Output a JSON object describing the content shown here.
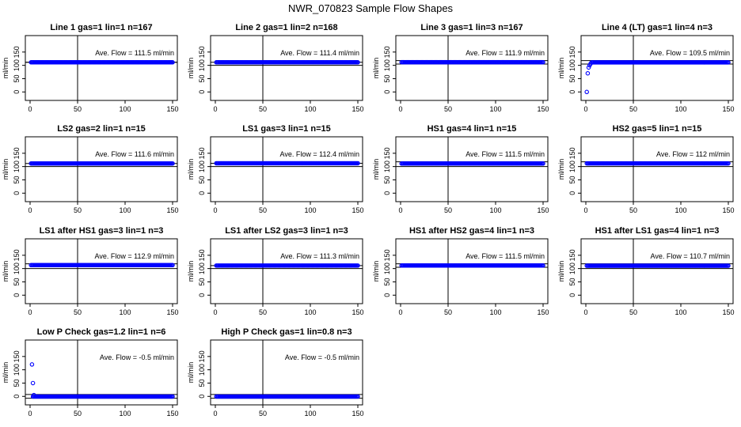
{
  "title": "NWR_070823  Sample Flow Shapes",
  "chart_data": [
    {
      "type": "scatter",
      "title": "Line 1 gas=1 lin=1 n=167",
      "ylabel": "ml/min",
      "annotation": "Ave. Flow =  111.5  ml/min",
      "xlim": [
        0,
        150
      ],
      "ylim": [
        -20,
        200
      ],
      "xticks": [
        0,
        50,
        100,
        150
      ],
      "yticks": [
        0,
        50,
        100,
        150
      ],
      "hline": [
        111.5,
        111.5
      ],
      "vline": 50,
      "series": [
        {
          "start_x": 1,
          "end_x": 150,
          "value": 111.5,
          "outliers": []
        }
      ]
    },
    {
      "type": "scatter",
      "title": "Line 2 gas=1 lin=2 n=168",
      "ylabel": "ml/min",
      "annotation": "Ave. Flow =  111.4  ml/min",
      "xlim": [
        0,
        150
      ],
      "ylim": [
        -20,
        200
      ],
      "xticks": [
        0,
        50,
        100,
        150
      ],
      "yticks": [
        0,
        50,
        100,
        150
      ],
      "hline": [
        111.4,
        100
      ],
      "vline": 50,
      "series": [
        {
          "start_x": 1,
          "end_x": 150,
          "value": 111.4,
          "outliers": []
        }
      ]
    },
    {
      "type": "scatter",
      "title": "Line 3 gas=1 lin=3 n=167",
      "ylabel": "ml/min",
      "annotation": "Ave. Flow =  111.9  ml/min",
      "xlim": [
        0,
        150
      ],
      "ylim": [
        -20,
        200
      ],
      "xticks": [
        0,
        50,
        100,
        150
      ],
      "yticks": [
        0,
        50,
        100,
        150
      ],
      "hline": [
        118,
        105
      ],
      "vline": 50,
      "series": [
        {
          "start_x": 1,
          "end_x": 150,
          "value": 111.9,
          "outliers": []
        }
      ]
    },
    {
      "type": "scatter",
      "title": "Line 4 (LT) gas=1 lin=4 n=3",
      "ylabel": "ml/min",
      "annotation": "Ave. Flow =  109.5  ml/min",
      "xlim": [
        0,
        150
      ],
      "ylim": [
        -20,
        200
      ],
      "xticks": [
        0,
        50,
        100,
        150
      ],
      "yticks": [
        0,
        50,
        100,
        150
      ],
      "hline": [
        118,
        105
      ],
      "vline": 50,
      "series": [
        {
          "start_x": 6,
          "end_x": 150,
          "value": 111,
          "outliers": [
            [
              1,
              0
            ],
            [
              2,
              70
            ],
            [
              3,
              92
            ],
            [
              4,
              100
            ],
            [
              5,
              106
            ]
          ]
        }
      ]
    },
    {
      "type": "scatter",
      "title": "LS2 gas=2 lin=1 n=15",
      "ylabel": "ml/min",
      "annotation": "Ave. Flow =  111.6  ml/min",
      "xlim": [
        0,
        150
      ],
      "ylim": [
        -20,
        200
      ],
      "xticks": [
        0,
        50,
        100,
        150
      ],
      "yticks": [
        0,
        50,
        100,
        150
      ],
      "hline": [
        111.6,
        100
      ],
      "vline": 50,
      "series": [
        {
          "start_x": 1,
          "end_x": 150,
          "value": 111.6,
          "outliers": []
        }
      ]
    },
    {
      "type": "scatter",
      "title": "LS1 gas=3 lin=1 n=15",
      "ylabel": "ml/min",
      "annotation": "Ave. Flow =  112.4  ml/min",
      "xlim": [
        0,
        150
      ],
      "ylim": [
        -20,
        200
      ],
      "xticks": [
        0,
        50,
        100,
        150
      ],
      "yticks": [
        0,
        50,
        100,
        150
      ],
      "hline": [
        112.4,
        100
      ],
      "vline": 50,
      "series": [
        {
          "start_x": 1,
          "end_x": 150,
          "value": 112.4,
          "outliers": []
        }
      ]
    },
    {
      "type": "scatter",
      "title": "HS1 gas=4 lin=1 n=15",
      "ylabel": "ml/min",
      "annotation": "Ave. Flow =  111.5  ml/min",
      "xlim": [
        0,
        150
      ],
      "ylim": [
        -20,
        200
      ],
      "xticks": [
        0,
        50,
        100,
        150
      ],
      "yticks": [
        0,
        50,
        100,
        150
      ],
      "hline": [
        118,
        100
      ],
      "vline": 50,
      "series": [
        {
          "start_x": 1,
          "end_x": 150,
          "value": 111.5,
          "outliers": []
        }
      ]
    },
    {
      "type": "scatter",
      "title": "HS2 gas=5 lin=1 n=15",
      "ylabel": "ml/min",
      "annotation": "Ave. Flow =  112  ml/min",
      "xlim": [
        0,
        150
      ],
      "ylim": [
        -20,
        200
      ],
      "xticks": [
        0,
        50,
        100,
        150
      ],
      "yticks": [
        0,
        50,
        100,
        150
      ],
      "hline": [
        118,
        100
      ],
      "vline": 50,
      "series": [
        {
          "start_x": 1,
          "end_x": 150,
          "value": 112,
          "outliers": []
        }
      ]
    },
    {
      "type": "scatter",
      "title": "LS1 after HS1 gas=3 lin=1 n=3",
      "ylabel": "ml/min",
      "annotation": "Ave. Flow =  112.9  ml/min",
      "xlim": [
        0,
        150
      ],
      "ylim": [
        -20,
        200
      ],
      "xticks": [
        0,
        50,
        100,
        150
      ],
      "yticks": [
        0,
        50,
        100,
        150
      ],
      "hline": [
        118,
        100
      ],
      "vline": 50,
      "series": [
        {
          "start_x": 1,
          "end_x": 150,
          "value": 112.9,
          "outliers": []
        }
      ]
    },
    {
      "type": "scatter",
      "title": "LS1 after LS2 gas=3 lin=1 n=3",
      "ylabel": "ml/min",
      "annotation": "Ave. Flow =  111.3  ml/min",
      "xlim": [
        0,
        150
      ],
      "ylim": [
        -20,
        200
      ],
      "xticks": [
        0,
        50,
        100,
        150
      ],
      "yticks": [
        0,
        50,
        100,
        150
      ],
      "hline": [
        111.3,
        100
      ],
      "vline": 50,
      "series": [
        {
          "start_x": 1,
          "end_x": 150,
          "value": 111.3,
          "outliers": []
        }
      ]
    },
    {
      "type": "scatter",
      "title": "HS1 after HS2 gas=4 lin=1 n=3",
      "ylabel": "ml/min",
      "annotation": "Ave. Flow =  111.5  ml/min",
      "xlim": [
        0,
        150
      ],
      "ylim": [
        -20,
        200
      ],
      "xticks": [
        0,
        50,
        100,
        150
      ],
      "yticks": [
        0,
        50,
        100,
        150
      ],
      "hline": [
        118,
        105
      ],
      "vline": 50,
      "series": [
        {
          "start_x": 1,
          "end_x": 150,
          "value": 111.5,
          "outliers": []
        }
      ]
    },
    {
      "type": "scatter",
      "title": "HS1 after LS1 gas=4 lin=1 n=3",
      "ylabel": "ml/min",
      "annotation": "Ave. Flow =  110.7  ml/min",
      "xlim": [
        0,
        150
      ],
      "ylim": [
        -20,
        200
      ],
      "xticks": [
        0,
        50,
        100,
        150
      ],
      "yticks": [
        0,
        50,
        100,
        150
      ],
      "hline": [
        118,
        100
      ],
      "vline": 50,
      "series": [
        {
          "start_x": 1,
          "end_x": 150,
          "value": 110.7,
          "outliers": []
        }
      ]
    },
    {
      "type": "scatter",
      "title": "Low P Check gas=1.2 lin=1 n=6",
      "ylabel": "ml/min",
      "annotation": "Ave. Flow =  -0.5  ml/min",
      "xlim": [
        0,
        150
      ],
      "ylim": [
        -20,
        200
      ],
      "xticks": [
        0,
        50,
        100,
        150
      ],
      "yticks": [
        0,
        50,
        100,
        150
      ],
      "hline": [
        7,
        -7
      ],
      "vline": 50,
      "series": [
        {
          "start_x": 3,
          "end_x": 150,
          "value": -0.5,
          "outliers": [
            [
              2,
              120
            ],
            [
              3,
              50
            ],
            [
              4,
              5
            ]
          ]
        }
      ]
    },
    {
      "type": "scatter",
      "title": "High P Check gas=1 lin=0.8 n=3",
      "ylabel": "ml/min",
      "annotation": "Ave. Flow =  -0.5  ml/min",
      "xlim": [
        0,
        150
      ],
      "ylim": [
        -20,
        200
      ],
      "xticks": [
        0,
        50,
        100,
        150
      ],
      "yticks": [
        0,
        50,
        100,
        150
      ],
      "hline": [
        7,
        -7
      ],
      "vline": 50,
      "series": [
        {
          "start_x": 1,
          "end_x": 150,
          "value": -0.5,
          "outliers": []
        }
      ]
    }
  ],
  "colors": {
    "points": "#0000ff",
    "lines": "#000000"
  }
}
